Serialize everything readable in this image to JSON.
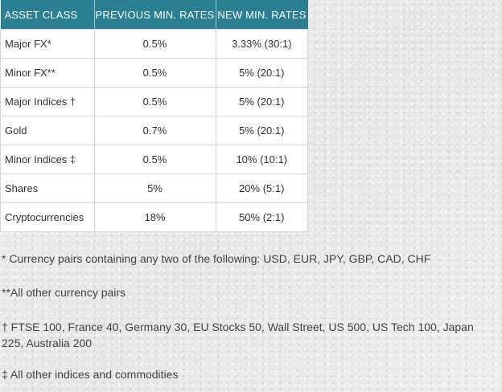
{
  "table": {
    "headers": [
      "ASSET CLASS",
      "PREVIOUS MIN. RATES",
      "NEW MIN. RATES"
    ],
    "rows": [
      [
        "Major FX*",
        "0.5%",
        "3.33% (30:1)"
      ],
      [
        "Minor FX**",
        "0.5%",
        "5% (20:1)"
      ],
      [
        "Major Indices †",
        "0.5%",
        "5% (20:1)"
      ],
      [
        "Gold",
        "0.7%",
        "5% (20:1)"
      ],
      [
        "Minor Indices ‡",
        "0.5%",
        "10% (10:1)"
      ],
      [
        "Shares",
        "5%",
        "20% (5:1)"
      ],
      [
        "Cryptocurrencies",
        "18%",
        "50% (2:1)"
      ]
    ]
  },
  "footnotes": [
    "* Currency pairs containing any two of the following: USD, EUR, JPY, GBP, CAD, CHF",
    "**All other currency pairs",
    "† FTSE 100, France 40, Germany 30, EU Stocks 50, Wall Street, US 500, US Tech 100, Japan 225, Australia 200",
    "‡ All other indices and commodities"
  ],
  "colors": {
    "header_bg": "#2a7f93",
    "header_text": "#ffffff"
  }
}
